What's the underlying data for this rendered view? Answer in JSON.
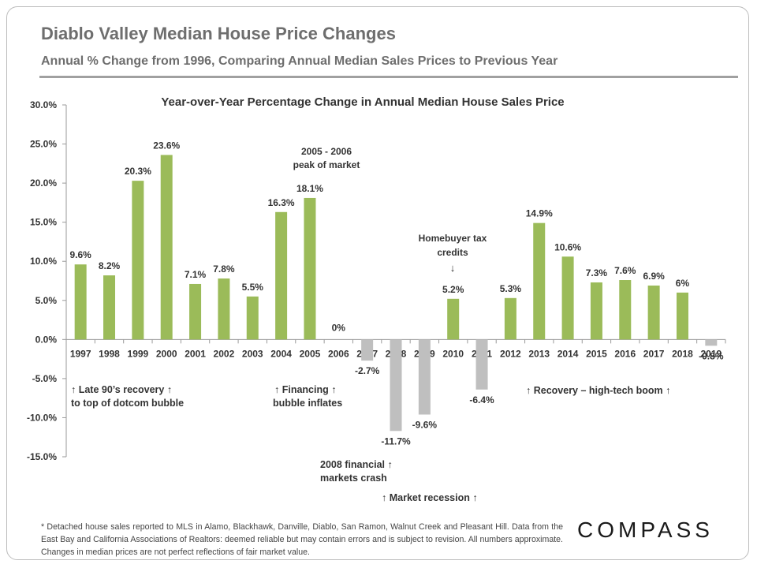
{
  "header": {
    "title": "Diablo Valley Median House Price Changes",
    "subtitle": "Annual % Change from 1996, Comparing Annual Median Sales Prices to Previous Year"
  },
  "colors": {
    "positive_bar": "#9bbb59",
    "negative_bar": "#bfbfbf",
    "text": "#333333"
  },
  "chart_data": {
    "type": "bar",
    "title": "Year-over-Year Percentage Change in Annual Median House Sales Price",
    "xlabel": "",
    "ylabel": "",
    "ylim": [
      -15,
      30
    ],
    "yticks": [
      "30.0%",
      "25.0%",
      "20.0%",
      "15.0%",
      "10.0%",
      "5.0%",
      "0.0%",
      "-5.0%",
      "-10.0%",
      "-15.0%"
    ],
    "categories": [
      "1997",
      "1998",
      "1999",
      "2000",
      "2001",
      "2002",
      "2003",
      "2004",
      "2005",
      "2006",
      "2007",
      "2008",
      "2009",
      "2010",
      "2011",
      "2012",
      "2013",
      "2014",
      "2015",
      "2016",
      "2017",
      "2018",
      "2019"
    ],
    "values": [
      9.6,
      8.2,
      20.3,
      23.6,
      7.1,
      7.8,
      5.5,
      16.3,
      18.1,
      0,
      -2.7,
      -11.7,
      -9.6,
      5.2,
      -6.4,
      5.3,
      14.9,
      10.6,
      7.3,
      7.6,
      6.9,
      6,
      -0.8
    ],
    "labels": [
      "9.6%",
      "8.2%",
      "20.3%",
      "23.6%",
      "7.1%",
      "7.8%",
      "5.5%",
      "16.3%",
      "18.1%",
      "0%",
      "-2.7%",
      "-11.7%",
      "-9.6%",
      "5.2%",
      "-6.4%",
      "5.3%",
      "14.9%",
      "10.6%",
      "7.3%",
      "7.6%",
      "6.9%",
      "6%",
      "-0.8%"
    ],
    "grid": false,
    "legend": "none",
    "annotations": {
      "peak_line1": "2005 - 2006",
      "peak_line2": "peak of market",
      "tax_line1": "Homebuyer tax",
      "tax_line2": "credits",
      "tax_arrow": "↓",
      "late90s_line1": "↑ Late 90’s recovery ↑",
      "late90s_line2": "to top of dotcom bubble",
      "financing_line1": "↑ Financing ↑",
      "financing_line2": "bubble inflates",
      "crash_line1": "2008 financial ↑",
      "crash_line2": "markets crash",
      "recession": "↑  Market recession  ↑",
      "recovery": "↑  Recovery – high-tech boom ↑"
    }
  },
  "footer": {
    "note": "* Detached house sales reported to MLS in Alamo, Blackhawk, Danville, Diablo, San Ramon, Walnut Creek and Pleasant Hill. Data from the East Bay and California Associations of Realtors:  deemed reliable but may contain errors and is subject to revision. All numbers approximate. Changes in median prices are not perfect reflections of fair market value.",
    "logo": "COMPASS"
  }
}
